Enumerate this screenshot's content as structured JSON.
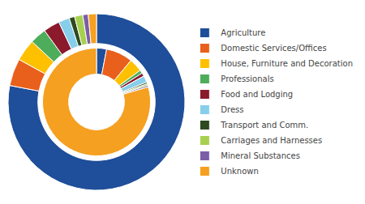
{
  "chart_data": {
    "type": "donut",
    "categories": [
      "Agriculture",
      "Domestic Services/Offices",
      "House, Furniture and Decoration",
      "Professionals",
      "Food and Lodging",
      "Dress",
      "Transport and Comm.",
      "Carriages and Harnesses",
      "Mineral Substances",
      "Unknown"
    ],
    "colors": [
      "#1F4E9A",
      "#E8601C",
      "#FFC000",
      "#4EAD5B",
      "#8B1A2D",
      "#87CEEB",
      "#2E4A1E",
      "#A8D050",
      "#7B5EA7",
      "#F5A020"
    ],
    "series": [
      {
        "values": [
          78,
          5,
          4,
          3,
          3,
          2,
          1,
          1.5,
          1,
          1.5
        ]
      },
      {
        "values": [
          3,
          8,
          4,
          1,
          1,
          2,
          0.5,
          0.5,
          0.5,
          79.5
        ]
      }
    ],
    "legend": "right"
  }
}
